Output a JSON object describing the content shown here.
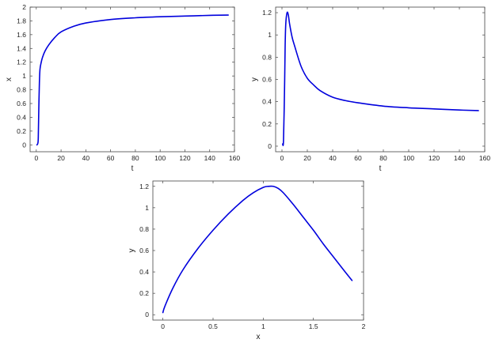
{
  "colors": {
    "line": "#0000dd"
  },
  "chart_data": [
    {
      "type": "line",
      "xlabel": "t",
      "ylabel": "x",
      "xlim": [
        -5,
        160
      ],
      "ylim": [
        -0.1,
        2
      ],
      "xticks": [
        0,
        20,
        40,
        60,
        80,
        100,
        120,
        140,
        160
      ],
      "yticks": [
        0,
        0.2,
        0.4,
        0.6,
        0.8,
        1,
        1.2,
        1.4,
        1.6,
        1.8,
        2
      ],
      "grid": false,
      "x": [
        0.5,
        1.2,
        1.6,
        2.0,
        2.5,
        3,
        4,
        5,
        7,
        10,
        15,
        20,
        30,
        40,
        60,
        80,
        100,
        120,
        140,
        155
      ],
      "y": [
        0.0,
        0.02,
        0.1,
        0.5,
        0.9,
        1.1,
        1.2,
        1.27,
        1.36,
        1.45,
        1.56,
        1.64,
        1.72,
        1.77,
        1.82,
        1.845,
        1.86,
        1.87,
        1.88,
        1.885
      ]
    },
    {
      "type": "line",
      "xlabel": "t",
      "ylabel": "y",
      "xlim": [
        -5,
        160
      ],
      "ylim": [
        -0.05,
        1.25
      ],
      "xticks": [
        0,
        20,
        40,
        60,
        80,
        100,
        120,
        140,
        160
      ],
      "yticks": [
        0,
        0.2,
        0.4,
        0.6,
        0.8,
        1,
        1.2
      ],
      "grid": false,
      "x": [
        0.5,
        1.2,
        2,
        2.5,
        3,
        4,
        5,
        6,
        8,
        10,
        15,
        20,
        25,
        30,
        40,
        50,
        60,
        80,
        100,
        120,
        140,
        155
      ],
      "y": [
        0.02,
        0.05,
        0.5,
        0.9,
        1.1,
        1.2,
        1.18,
        1.1,
        0.98,
        0.9,
        0.72,
        0.61,
        0.55,
        0.5,
        0.44,
        0.41,
        0.39,
        0.36,
        0.345,
        0.335,
        0.325,
        0.32
      ]
    },
    {
      "type": "line",
      "xlabel": "x",
      "ylabel": "y",
      "xlim": [
        -0.1,
        2
      ],
      "ylim": [
        -0.05,
        1.25
      ],
      "xticks": [
        0,
        0.5,
        1,
        1.5,
        2
      ],
      "yticks": [
        0,
        0.2,
        0.4,
        0.6,
        0.8,
        1,
        1.2
      ],
      "grid": false,
      "x": [
        0.0,
        0.02,
        0.1,
        0.2,
        0.35,
        0.5,
        0.65,
        0.8,
        0.9,
        1.0,
        1.05,
        1.1,
        1.15,
        1.2,
        1.3,
        1.4,
        1.5,
        1.6,
        1.7,
        1.8,
        1.885
      ],
      "y": [
        0.02,
        0.08,
        0.25,
        0.42,
        0.62,
        0.79,
        0.94,
        1.07,
        1.14,
        1.19,
        1.2,
        1.2,
        1.18,
        1.14,
        1.03,
        0.91,
        0.79,
        0.66,
        0.54,
        0.42,
        0.32
      ]
    }
  ]
}
